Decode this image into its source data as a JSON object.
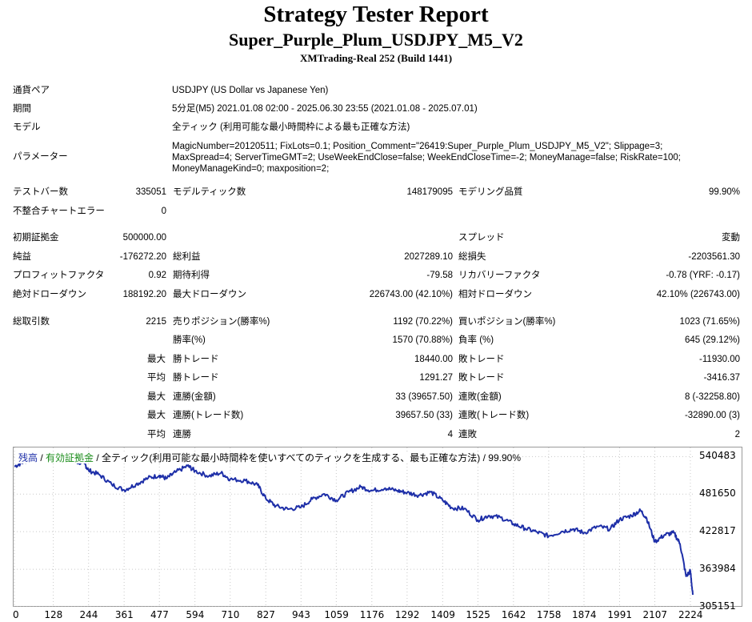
{
  "header": {
    "title": "Strategy Tester Report",
    "subtitle": "Super_Purple_Plum_USDJPY_M5_V2",
    "server": "XMTrading-Real 252 (Build 1441)"
  },
  "settings": {
    "symbol_label": "通貨ペア",
    "symbol_value": "USDJPY (US Dollar vs Japanese Yen)",
    "period_label": "期間",
    "period_value": "5分足(M5) 2021.01.08 02:00 - 2025.06.30 23:55 (2021.01.08 - 2025.07.01)",
    "model_label": "モデル",
    "model_value": "全ティック (利用可能な最小時間枠による最も正確な方法)",
    "params_label": "パラメーター",
    "params_line1": "MagicNumber=20120511; FixLots=0.1; Position_Comment=\"26419:Super_Purple_Plum_USDJPY_M5_V2\"; Slippage=3;",
    "params_line2": "MaxSpread=4; ServerTimeGMT=2; UseWeekEndClose=false; WeekEndCloseTime=-2; MoneyManage=false; RiskRate=100;",
    "params_line3": "MoneyManageKind=0; maxposition=2;"
  },
  "stats": {
    "bars_label": "テストバー数",
    "bars_value": "335051",
    "ticks_label": "モデルティック数",
    "ticks_value": "148179095",
    "quality_label": "モデリング品質",
    "quality_value": "99.90%",
    "mismatch_label": "不整合チャートエラー",
    "mismatch_value": "0",
    "deposit_label": "初期証拠金",
    "deposit_value": "500000.00",
    "spread_label": "スプレッド",
    "spread_value": "変動",
    "net_label": "純益",
    "net_value": "-176272.20",
    "gross_profit_label": "総利益",
    "gross_profit_value": "2027289.10",
    "gross_loss_label": "総損失",
    "gross_loss_value": "-2203561.30",
    "pf_label": "プロフィットファクタ",
    "pf_value": "0.92",
    "expected_label": "期待利得",
    "expected_value": "-79.58",
    "recovery_label": "リカバリーファクタ",
    "recovery_value": "-0.78 (YRF: -0.17)",
    "abs_dd_label": "絶対ドローダウン",
    "abs_dd_value": "188192.20",
    "max_dd_label": "最大ドローダウン",
    "max_dd_value": "226743.00 (42.10%)",
    "rel_dd_label": "相対ドローダウン",
    "rel_dd_value": "42.10% (226743.00)",
    "trades_label": "総取引数",
    "trades_value": "2215",
    "short_label": "売りポジション(勝率%)",
    "short_value": "1192 (70.22%)",
    "long_label": "買いポジション(勝率%)",
    "long_value": "1023 (71.65%)",
    "winrate_label": "勝率(%)",
    "winrate_value": "1570 (70.88%)",
    "lossrate_label": "負率 (%)",
    "lossrate_value": "645 (29.12%)",
    "max_prefix": "最大",
    "avg_prefix": "平均",
    "largest_win_label": "勝トレード",
    "largest_win_value": "18440.00",
    "largest_loss_label": "敗トレード",
    "largest_loss_value": "-11930.00",
    "avg_win_label": "勝トレード",
    "avg_win_value": "1291.27",
    "avg_loss_label": "敗トレード",
    "avg_loss_value": "-3416.37",
    "max_cons_win_label": "連勝(金額)",
    "max_cons_win_value": "33 (39657.50)",
    "max_cons_loss_label": "連敗(金額)",
    "max_cons_loss_value": "8 (-32258.80)",
    "max_cons_profit_label": "連勝(トレード数)",
    "max_cons_profit_value": "39657.50 (33)",
    "max_cons_loss2_label": "連敗(トレード数)",
    "max_cons_loss2_value": "-32890.00 (3)",
    "avg_cons_win_label": "連勝",
    "avg_cons_win_value": "4",
    "avg_cons_loss_label": "連敗",
    "avg_cons_loss_value": "2"
  },
  "legend": {
    "balance": "残高",
    "sep1": " / ",
    "equity": "有効証拠金",
    "rest": " / 全ティック(利用可能な最小時間枠を使いすべてのティックを生成する、最も正確な方法) / 99.90%"
  },
  "colors": {
    "balance_line": "#1e2fa8",
    "equity_legend": "#1a8c1a",
    "grid": "#c8c8c8"
  },
  "chart_data": {
    "type": "line",
    "ylim": [
      305151,
      556000
    ],
    "y_ticks": [
      "540483",
      "481650",
      "422817",
      "363984",
      "305151"
    ],
    "x_ticks": [
      "0",
      "128",
      "244",
      "361",
      "477",
      "594",
      "710",
      "827",
      "943",
      "1059",
      "1176",
      "1292",
      "1409",
      "1525",
      "1642",
      "1758",
      "1874",
      "1991",
      "2107",
      "2224"
    ],
    "series": [
      {
        "name": "残高",
        "x": [
          0,
          30,
          60,
          100,
          130,
          170,
          200,
          230,
          244,
          280,
          320,
          361,
          400,
          440,
          477,
          500,
          530,
          570,
          594,
          640,
          680,
          710,
          760,
          800,
          827,
          860,
          900,
          943,
          980,
          1020,
          1059,
          1100,
          1140,
          1176,
          1220,
          1260,
          1292,
          1330,
          1370,
          1409,
          1440,
          1480,
          1525,
          1560,
          1600,
          1642,
          1680,
          1720,
          1758,
          1800,
          1840,
          1874,
          1920,
          1960,
          1991,
          2030,
          2060,
          2080,
          2107,
          2140,
          2170,
          2190,
          2210,
          2224,
          2232
        ],
        "y": [
          525000,
          532000,
          538000,
          540000,
          537000,
          541000,
          532000,
          530000,
          519000,
          512000,
          497000,
          488000,
          497000,
          507000,
          511000,
          506000,
          516000,
          526000,
          518000,
          510000,
          515000,
          505000,
          503000,
          496000,
          475000,
          463000,
          458000,
          461000,
          474000,
          482000,
          472000,
          485000,
          493000,
          487000,
          491000,
          487000,
          484000,
          480000,
          485000,
          472000,
          460000,
          459000,
          441000,
          448000,
          445000,
          435000,
          428000,
          422000,
          416000,
          423000,
          427000,
          421000,
          431000,
          427000,
          442000,
          448000,
          456000,
          444000,
          407000,
          418000,
          421000,
          404000,
          353000,
          361000,
          324000
        ]
      }
    ]
  }
}
